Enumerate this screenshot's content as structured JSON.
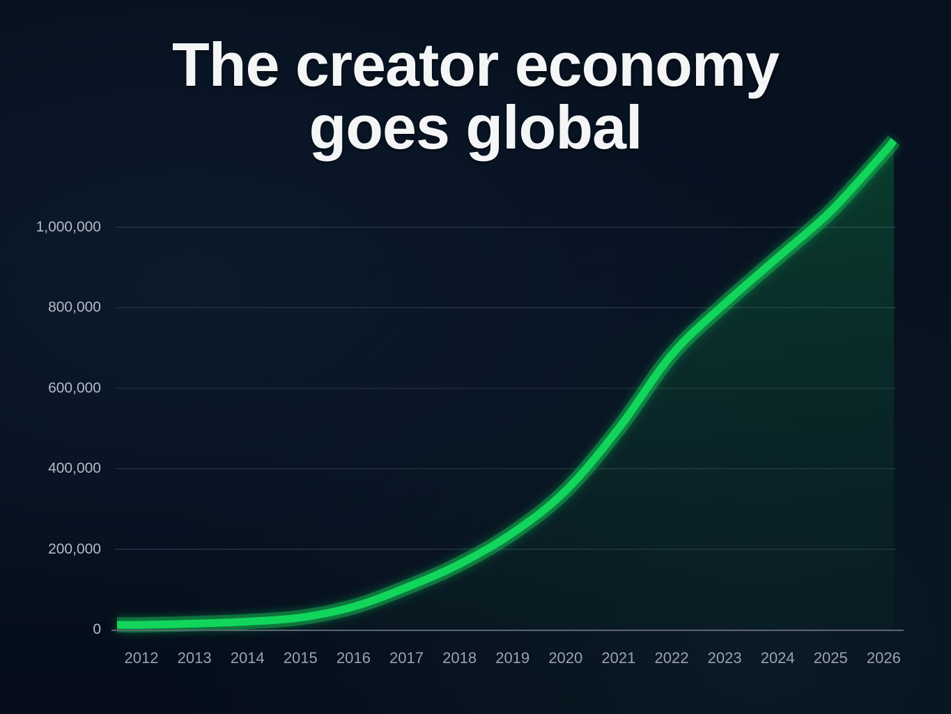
{
  "title": {
    "line1": "The creator economy",
    "line2": "goes global"
  },
  "colors": {
    "background": "#070f1c",
    "line": "#12d65c",
    "gridline": "#2a3545",
    "axis_label": "#b3bcc8",
    "title": "#f4f5f6"
  },
  "axes": {
    "y_ticks": [
      {
        "value": 0,
        "label": "0"
      },
      {
        "value": 200000,
        "label": "200,000"
      },
      {
        "value": 400000,
        "label": "400,000"
      },
      {
        "value": 600000,
        "label": "600,000"
      },
      {
        "value": 800000,
        "label": "800,000"
      },
      {
        "value": 1000000,
        "label": "1,000,000"
      }
    ],
    "x_ticks": [
      "2012",
      "2013",
      "2014",
      "2015",
      "2016",
      "2017",
      "2018",
      "2019",
      "2020",
      "2021",
      "2022",
      "2023",
      "2024",
      "2025",
      "2026"
    ]
  },
  "chart_data": {
    "type": "line",
    "title": "The creator economy goes global",
    "xlabel": "",
    "ylabel": "",
    "categories": [
      "2012",
      "2013",
      "2014",
      "2015",
      "2016",
      "2017",
      "2018",
      "2019",
      "2020",
      "2021",
      "2022",
      "2023",
      "2024",
      "2025",
      "2026"
    ],
    "series": [
      {
        "name": "Creator economy",
        "values": [
          12000,
          15000,
          20000,
          30000,
          57000,
          105000,
          163000,
          240000,
          345000,
          500000,
          683000,
          810000,
          925000,
          1040000,
          1185000
        ]
      }
    ],
    "ylim": [
      0,
      1000000
    ],
    "yticks": [
      0,
      200000,
      400000,
      600000,
      800000,
      1000000
    ],
    "grid": true,
    "legend": "none",
    "style": "glowing green line with soft area fill on dark navy background"
  }
}
